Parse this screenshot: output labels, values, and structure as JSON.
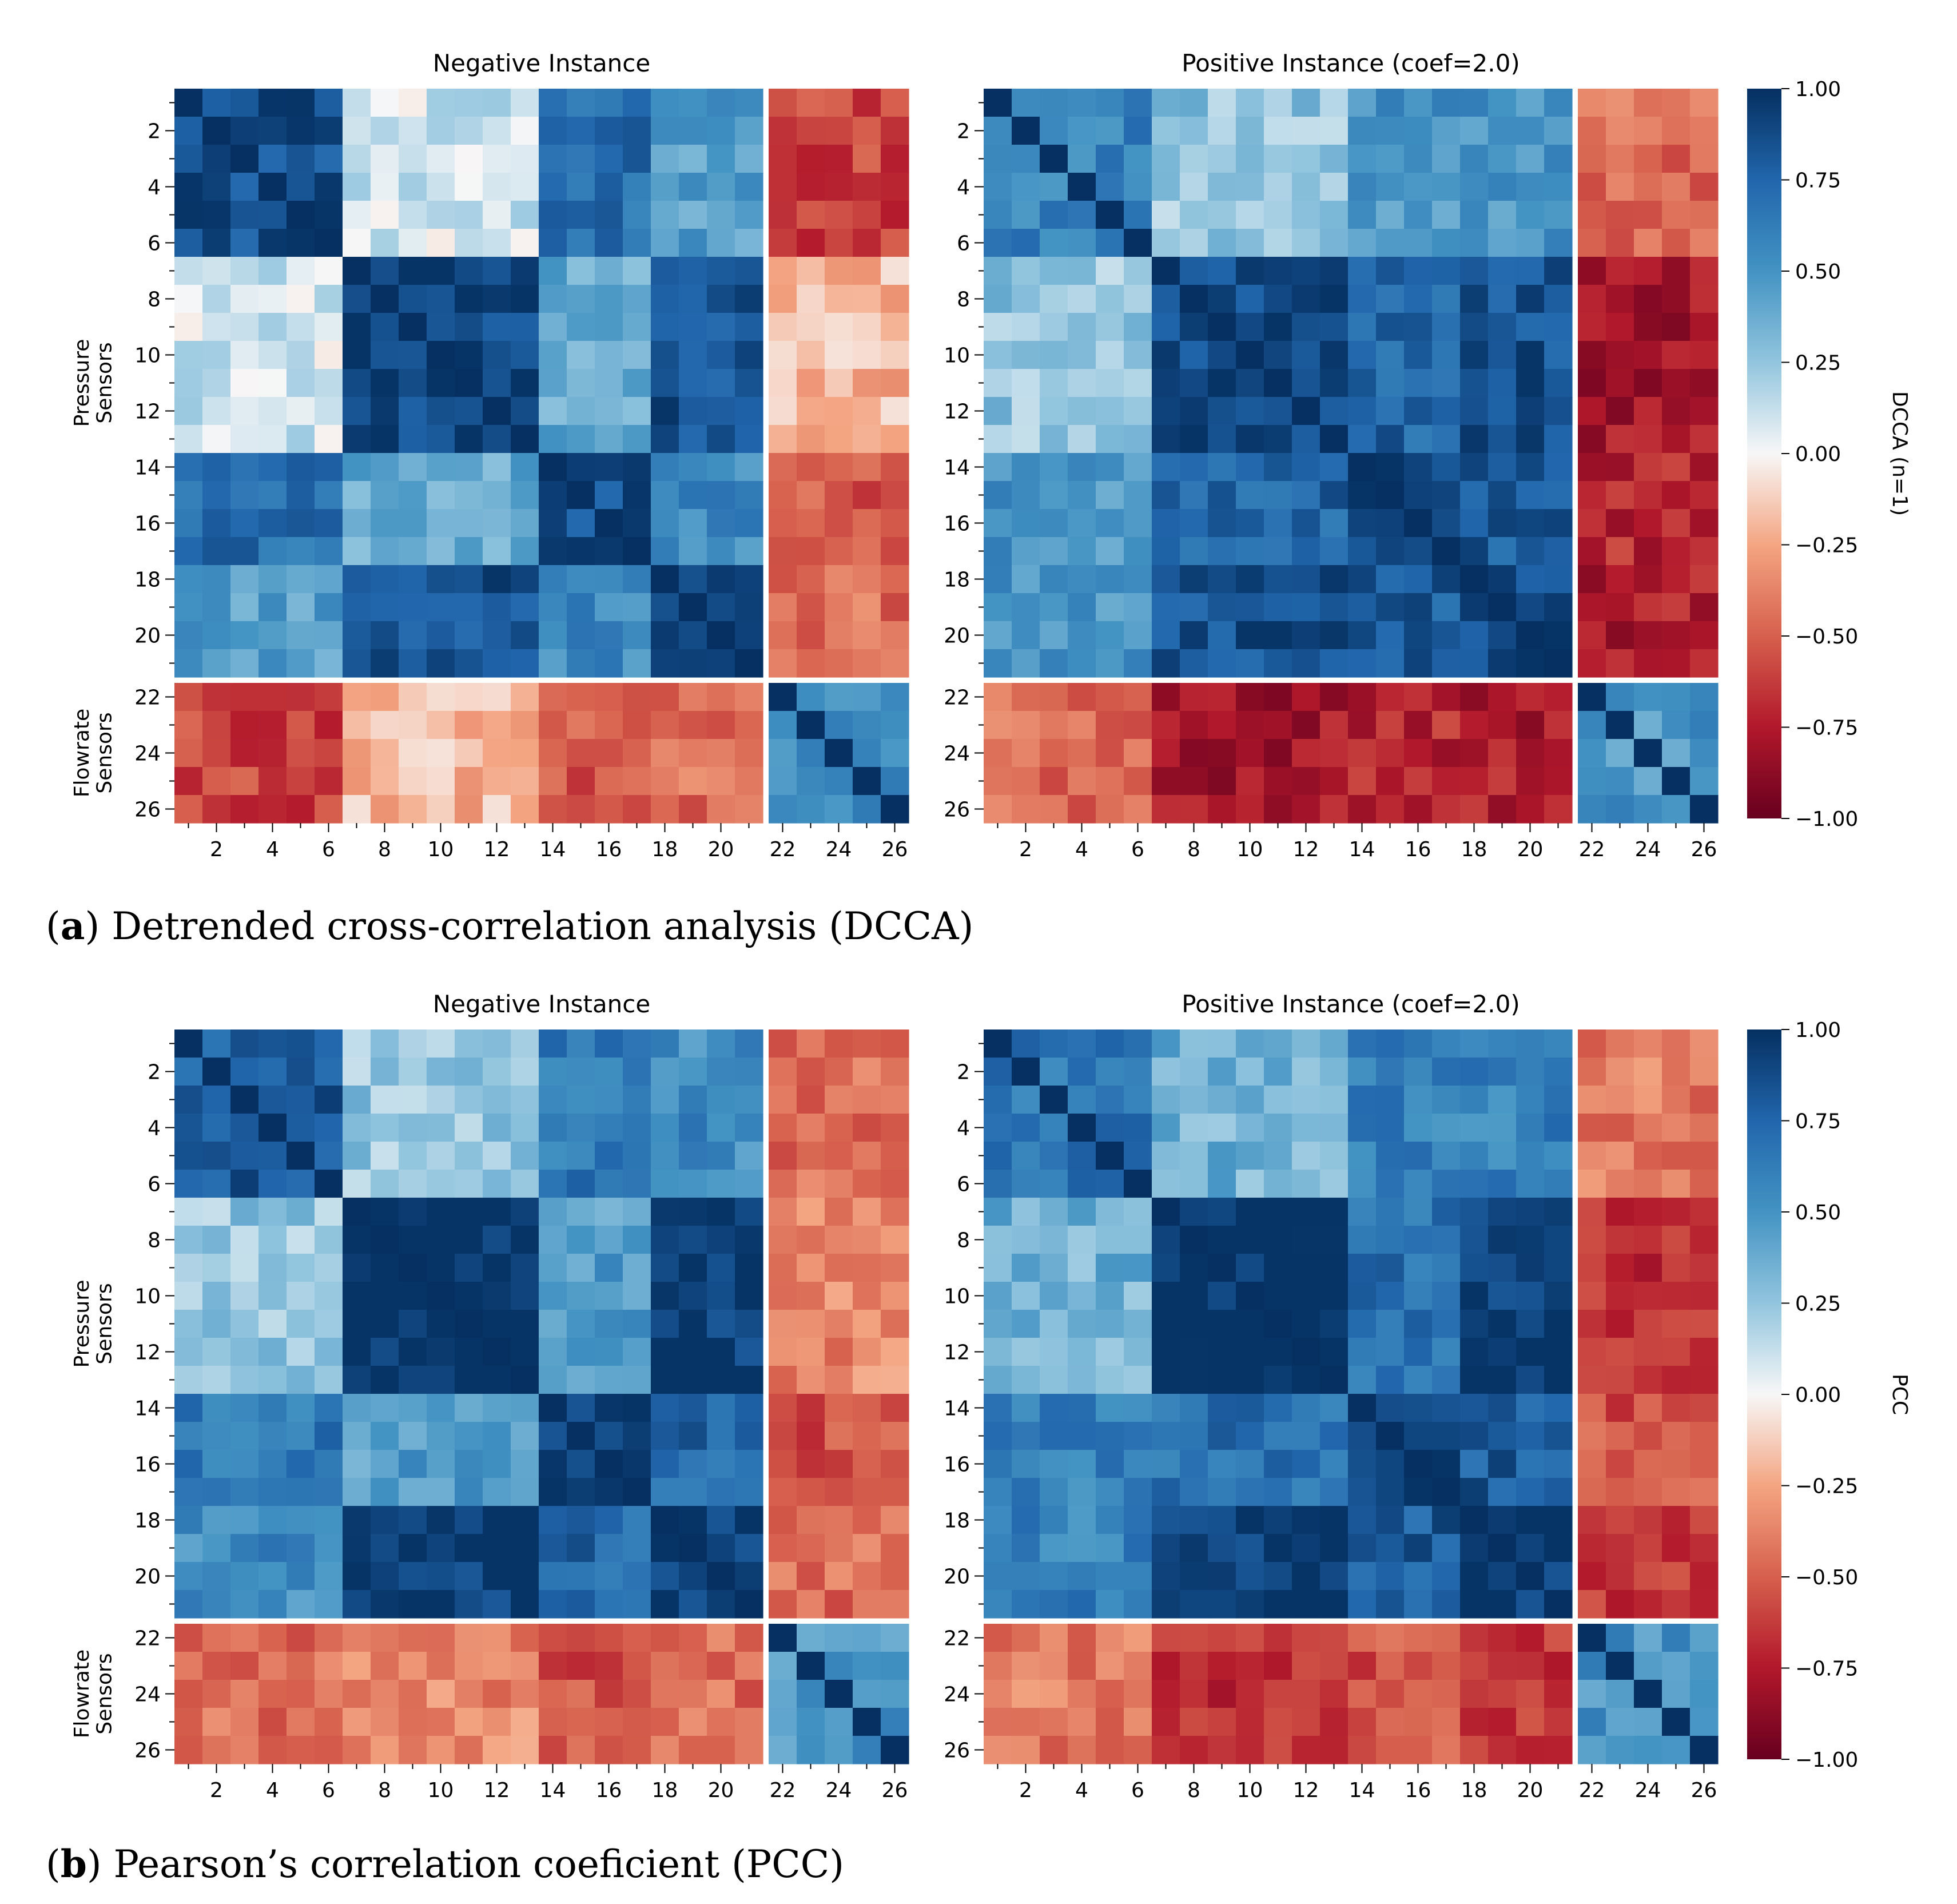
{
  "panels": [
    {
      "caption_letter": "a",
      "caption_text": "Detrended cross-correlation analysis (DCCA)",
      "colorbar": {
        "label": "DCCA (n=1)",
        "ticks": [
          "1.00",
          "0.75",
          "0.50",
          "0.25",
          "0.00",
          "−0.25",
          "−0.50",
          "−0.75",
          "−1.00"
        ]
      }
    },
    {
      "caption_letter": "b",
      "caption_text": "Pearson’s correlation coeficient (PCC)",
      "colorbar": {
        "label": "PCC",
        "ticks": [
          "1.00",
          "0.75",
          "0.50",
          "0.25",
          "0.00",
          "−0.25",
          "−0.50",
          "−0.75",
          "−1.00"
        ]
      }
    }
  ],
  "axis_groups": {
    "y_top": "Pressure\nSensors",
    "y_bottom": "Flowrate\nSensors"
  },
  "tick_labels": [
    "2",
    "4",
    "6",
    "8",
    "10",
    "12",
    "14",
    "16",
    "18",
    "20",
    "22",
    "24",
    "26"
  ],
  "chart_data": [
    {
      "type": "heatmap",
      "panel": "a",
      "title": "Negative Instance",
      "x": [
        1,
        2,
        3,
        4,
        5,
        6,
        7,
        8,
        9,
        10,
        11,
        12,
        13,
        14,
        15,
        16,
        17,
        18,
        19,
        20,
        21,
        22,
        23,
        24,
        25,
        26
      ],
      "y": [
        1,
        2,
        3,
        4,
        5,
        6,
        7,
        8,
        9,
        10,
        11,
        12,
        13,
        14,
        15,
        16,
        17,
        18,
        19,
        20,
        21,
        22,
        23,
        24,
        25,
        26
      ],
      "zlim": [
        -1,
        1
      ],
      "colormap": "RdBu",
      "sensor_groups": {
        "pressure": [
          1,
          21
        ],
        "flowrate": [
          22,
          26
        ]
      },
      "z_approx_by_sensor_block": {
        "blocks": [
          "1-6",
          "7-13",
          "14-17",
          "18-21",
          "22-26"
        ],
        "matrix": [
          [
            0.85,
            0.1,
            0.7,
            0.45,
            -0.6
          ],
          [
            0.1,
            0.9,
            0.4,
            0.85,
            -0.2
          ],
          [
            0.7,
            0.4,
            0.85,
            0.55,
            -0.55
          ],
          [
            0.45,
            0.85,
            0.55,
            0.9,
            -0.45
          ],
          [
            -0.6,
            -0.2,
            -0.55,
            -0.45,
            0.55
          ]
        ]
      }
    },
    {
      "type": "heatmap",
      "panel": "a",
      "title": "Positive Instance (coef=2.0)",
      "x": [
        1,
        2,
        3,
        4,
        5,
        6,
        7,
        8,
        9,
        10,
        11,
        12,
        13,
        14,
        15,
        16,
        17,
        18,
        19,
        20,
        21,
        22,
        23,
        24,
        25,
        26
      ],
      "y": [
        1,
        2,
        3,
        4,
        5,
        6,
        7,
        8,
        9,
        10,
        11,
        12,
        13,
        14,
        15,
        16,
        17,
        18,
        19,
        20,
        21,
        22,
        23,
        24,
        25,
        26
      ],
      "zlim": [
        -1,
        1
      ],
      "colormap": "RdBu",
      "sensor_groups": {
        "pressure": [
          1,
          21
        ],
        "flowrate": [
          22,
          26
        ]
      },
      "z_approx_by_sensor_block": {
        "blocks": [
          "1-6",
          "7-13",
          "14-17",
          "18-21",
          "22-26"
        ],
        "matrix": [
          [
            0.6,
            0.25,
            0.5,
            0.5,
            -0.45
          ],
          [
            0.25,
            0.9,
            0.75,
            0.85,
            -0.8
          ],
          [
            0.5,
            0.75,
            0.85,
            0.8,
            -0.7
          ],
          [
            0.5,
            0.85,
            0.8,
            0.9,
            -0.75
          ],
          [
            -0.45,
            -0.8,
            -0.7,
            -0.75,
            0.5
          ]
        ]
      }
    },
    {
      "type": "heatmap",
      "panel": "b",
      "title": "Negative Instance",
      "x": [
        1,
        2,
        3,
        4,
        5,
        6,
        7,
        8,
        9,
        10,
        11,
        12,
        13,
        14,
        15,
        16,
        17,
        18,
        19,
        20,
        21,
        22,
        23,
        24,
        25,
        26
      ],
      "y": [
        1,
        2,
        3,
        4,
        5,
        6,
        7,
        8,
        9,
        10,
        11,
        12,
        13,
        14,
        15,
        16,
        17,
        18,
        19,
        20,
        21,
        22,
        23,
        24,
        25,
        26
      ],
      "zlim": [
        -1,
        1
      ],
      "colormap": "RdBu",
      "sensor_groups": {
        "pressure": [
          1,
          21
        ],
        "flowrate": [
          22,
          26
        ]
      },
      "z_approx_by_sensor_block": {
        "blocks": [
          "1-6",
          "7-13",
          "14-17",
          "18-21",
          "22-26"
        ],
        "matrix": [
          [
            0.8,
            0.25,
            0.65,
            0.55,
            -0.45
          ],
          [
            0.25,
            1.0,
            0.45,
            0.95,
            -0.35
          ],
          [
            0.65,
            0.45,
            0.95,
            0.75,
            -0.55
          ],
          [
            0.55,
            0.95,
            0.75,
            0.95,
            -0.45
          ],
          [
            -0.45,
            -0.35,
            -0.55,
            -0.45,
            0.5
          ]
        ]
      }
    },
    {
      "type": "heatmap",
      "panel": "b",
      "title": "Positive Instance (coef=2.0)",
      "x": [
        1,
        2,
        3,
        4,
        5,
        6,
        7,
        8,
        9,
        10,
        11,
        12,
        13,
        14,
        15,
        16,
        17,
        18,
        19,
        20,
        21,
        22,
        23,
        24,
        25,
        26
      ],
      "y": [
        1,
        2,
        3,
        4,
        5,
        6,
        7,
        8,
        9,
        10,
        11,
        12,
        13,
        14,
        15,
        16,
        17,
        18,
        19,
        20,
        21,
        22,
        23,
        24,
        25,
        26
      ],
      "zlim": [
        -1,
        1
      ],
      "colormap": "RdBu",
      "sensor_groups": {
        "pressure": [
          1,
          21
        ],
        "flowrate": [
          22,
          26
        ]
      },
      "z_approx_by_sensor_block": {
        "blocks": [
          "1-6",
          "7-13",
          "14-17",
          "18-21",
          "22-26"
        ],
        "matrix": [
          [
            0.65,
            0.35,
            0.6,
            0.6,
            -0.4
          ],
          [
            0.35,
            1.0,
            0.7,
            0.95,
            -0.7
          ],
          [
            0.6,
            0.7,
            0.95,
            0.8,
            -0.55
          ],
          [
            0.6,
            0.95,
            0.8,
            0.95,
            -0.65
          ],
          [
            -0.4,
            -0.7,
            -0.55,
            -0.65,
            0.5
          ]
        ]
      }
    }
  ]
}
